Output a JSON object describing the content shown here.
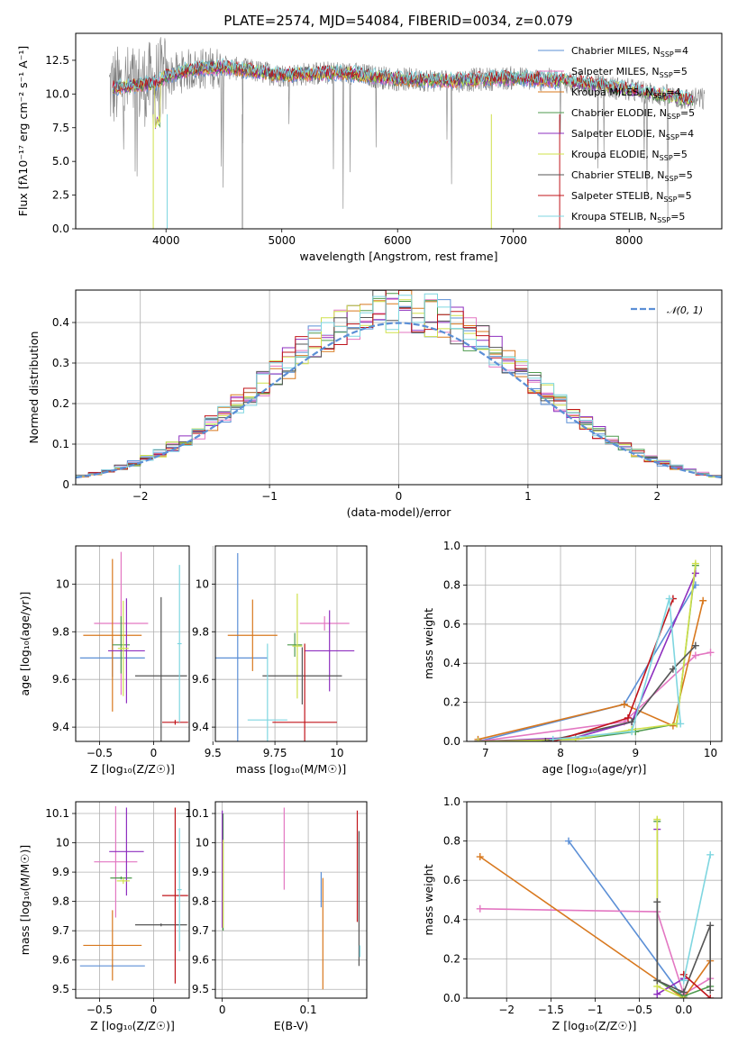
{
  "figure": {
    "title": "PLATE=2574, MJD=54084, FIBERID=0034, z=0.079"
  },
  "colors": {
    "Chabrier MILES": "#5b8fd6",
    "Salpeter MILES": "#e377c2",
    "Kroupa MILES": "#d8781e",
    "Chabrier ELODIE": "#4e9a4e",
    "Salpeter ELODIE": "#8e2fbf",
    "Kroupa ELODIE": "#cfe04a",
    "Chabrier STELIB": "#555555",
    "Salpeter STELIB": "#c0141a",
    "Kroupa STELIB": "#7fd6e0",
    "data": "#7f7f7f",
    "normal": "#5b8fd6"
  },
  "chart_data": [
    {
      "id": "spectrum",
      "type": "line",
      "title": "PLATE=2574, MJD=54084, FIBERID=0034, z=0.079",
      "xlabel": "wavelength [Angstrom, rest frame]",
      "ylabel": "Flux [fλ10⁻¹⁷ erg cm⁻² s⁻¹ A⁻¹]",
      "xlim": [
        3220,
        8800
      ],
      "ylim": [
        0,
        14.5
      ],
      "xticks": [
        4000,
        5000,
        6000,
        7000,
        8000
      ],
      "yticks": [
        0.0,
        2.5,
        5.0,
        7.5,
        10.0,
        12.5
      ],
      "grid": false,
      "legend_position": "upper right",
      "legend": [
        {
          "name": "Chabrier MILES, N",
          "sub": "SSP",
          "suffix": "=4",
          "color": "#5b8fd6"
        },
        {
          "name": "Salpeter MILES, N",
          "sub": "SSP",
          "suffix": "=5",
          "color": "#e377c2"
        },
        {
          "name": "Kroupa MILES, N",
          "sub": "SSP",
          "suffix": "=4",
          "color": "#d8781e"
        },
        {
          "name": "Chabrier ELODIE, N",
          "sub": "SSP",
          "suffix": "=5",
          "color": "#4e9a4e"
        },
        {
          "name": "Salpeter ELODIE, N",
          "sub": "SSP",
          "suffix": "=4",
          "color": "#8e2fbf"
        },
        {
          "name": "Kroupa ELODIE, N",
          "sub": "SSP",
          "suffix": "=5",
          "color": "#cfe04a"
        },
        {
          "name": "Chabrier STELIB, N",
          "sub": "SSP",
          "suffix": "=5",
          "color": "#555555"
        },
        {
          "name": "Salpeter STELIB, N",
          "sub": "SSP",
          "suffix": "=5",
          "color": "#c0141a"
        },
        {
          "name": "Kroupa STELIB, N",
          "sub": "SSP",
          "suffix": "=5",
          "color": "#7fd6e0"
        }
      ],
      "continuum": [
        [
          3500,
          10.4
        ],
        [
          3700,
          10.6
        ],
        [
          3900,
          10.8
        ],
        [
          4000,
          11.3
        ],
        [
          4200,
          11.8
        ],
        [
          4500,
          12.0
        ],
        [
          5000,
          11.4
        ],
        [
          5500,
          11.6
        ],
        [
          6000,
          11.1
        ],
        [
          6500,
          11.0
        ],
        [
          7000,
          11.2
        ],
        [
          7400,
          11.0
        ],
        [
          8000,
          10.3
        ],
        [
          8500,
          9.6
        ]
      ]
    },
    {
      "id": "residuals",
      "type": "histogram",
      "xlabel": "(data-model)/error",
      "ylabel": "Normed distribution",
      "xlim": [
        -2.5,
        2.5
      ],
      "ylim": [
        0,
        0.48
      ],
      "xticks": [
        -2,
        -1,
        0,
        1,
        2
      ],
      "yticks": [
        0.0,
        0.1,
        0.2,
        0.3,
        0.4
      ],
      "grid": true,
      "legend_position": "upper right",
      "legend": [
        {
          "name": "𝒩(0, 1)",
          "color": "#5b8fd6",
          "style": "dashed"
        }
      ],
      "bin_width": 0.1,
      "reference_curve": "standard normal density"
    },
    {
      "id": "age-vs-Z",
      "type": "errorbar",
      "xlabel": "Z [log₁₀(Z/Z☉)]",
      "ylabel": "age [log₁₀(age/yr)]",
      "xlim": [
        -0.72,
        0.33
      ],
      "ylim": [
        9.34,
        10.16
      ],
      "xticks": [
        -0.5,
        0.0
      ],
      "yticks": [
        9.4,
        9.6,
        9.8,
        10.0
      ],
      "grid": true,
      "points": [
        {
          "series": "Chabrier MILES",
          "x": -0.38,
          "xerr": 0.3,
          "y": 9.69,
          "yerr": 0.08
        },
        {
          "series": "Salpeter MILES",
          "x": -0.3,
          "xerr": 0.25,
          "y": 9.835,
          "yerr": 0.3
        },
        {
          "series": "Kroupa MILES",
          "x": -0.38,
          "xerr": 0.27,
          "y": 9.785,
          "yerr": 0.32
        },
        {
          "series": "Chabrier ELODIE",
          "x": -0.3,
          "xerr": 0.08,
          "y": 9.745,
          "yerr": 0.12
        },
        {
          "series": "Salpeter ELODIE",
          "x": -0.25,
          "xerr": 0.17,
          "y": 9.72,
          "yerr": 0.22
        },
        {
          "series": "Kroupa ELODIE",
          "x": -0.28,
          "xerr": 0.05,
          "y": 9.73,
          "yerr": 0.2
        },
        {
          "series": "Chabrier STELIB",
          "x": 0.07,
          "xerr": 0.24,
          "y": 9.615,
          "yerr": 0.33
        },
        {
          "series": "Salpeter STELIB",
          "x": 0.2,
          "xerr": 0.12,
          "y": 9.42,
          "yerr": 0.01
        },
        {
          "series": "Kroupa STELIB",
          "x": 0.24,
          "xerr": 0.02,
          "y": 9.75,
          "yerr": 0.33
        }
      ]
    },
    {
      "id": "age-vs-mass",
      "type": "errorbar",
      "xlabel": "mass [log₁₀(M/M☉)]",
      "ylabel": "",
      "xlim": [
        9.51,
        10.12
      ],
      "ylim": [
        9.34,
        10.16
      ],
      "xticks": [
        9.5,
        9.75,
        10.0
      ],
      "yticks": [
        9.4,
        9.6,
        9.8,
        10.0
      ],
      "grid": true,
      "points": [
        {
          "series": "Chabrier MILES",
          "x": 9.6,
          "xerr": 0.12,
          "y": 9.69,
          "yerr": 0.44
        },
        {
          "series": "Salpeter MILES",
          "x": 9.95,
          "xerr": 0.1,
          "y": 9.835,
          "yerr": 0.03
        },
        {
          "series": "Kroupa MILES",
          "x": 9.66,
          "xerr": 0.1,
          "y": 9.785,
          "yerr": 0.15
        },
        {
          "series": "Chabrier ELODIE",
          "x": 9.83,
          "xerr": 0.03,
          "y": 9.745,
          "yerr": 0.05
        },
        {
          "series": "Salpeter ELODIE",
          "x": 9.97,
          "xerr": 0.1,
          "y": 9.72,
          "yerr": 0.17
        },
        {
          "series": "Kroupa ELODIE",
          "x": 9.84,
          "xerr": 0.02,
          "y": 9.74,
          "yerr": 0.22
        },
        {
          "series": "Chabrier STELIB",
          "x": 9.86,
          "xerr": 0.16,
          "y": 9.615,
          "yerr": 0.12
        },
        {
          "series": "Salpeter STELIB",
          "x": 9.87,
          "xerr": 0.13,
          "y": 9.42,
          "yerr": 0.33
        },
        {
          "series": "Kroupa STELIB",
          "x": 9.72,
          "xerr": 0.08,
          "y": 9.43,
          "yerr": 0.32
        }
      ]
    },
    {
      "id": "massweight-vs-age",
      "type": "line",
      "xlabel": "age  [log₁₀(age/yr)]",
      "ylabel": "mass weight",
      "xlim": [
        6.75,
        10.15
      ],
      "ylim": [
        0,
        1
      ],
      "xticks": [
        7,
        8,
        9,
        10
      ],
      "yticks": [
        0.0,
        0.2,
        0.4,
        0.6,
        0.8,
        1.0
      ],
      "grid": true,
      "series": [
        {
          "name": "Chabrier MILES",
          "x": [
            6.9,
            8.85,
            9.8
          ],
          "y": [
            0.0,
            0.19,
            0.8
          ]
        },
        {
          "name": "Salpeter MILES",
          "x": [
            6.9,
            8.85,
            9.8,
            10.0
          ],
          "y": [
            0.0,
            0.1,
            0.44,
            0.455
          ]
        },
        {
          "name": "Kroupa MILES",
          "x": [
            6.9,
            8.85,
            9.5,
            9.9
          ],
          "y": [
            0.01,
            0.19,
            0.08,
            0.72
          ]
        },
        {
          "name": "Chabrier ELODIE",
          "x": [
            6.9,
            8.2,
            9.0,
            9.55,
            9.8
          ],
          "y": [
            0.0,
            0.01,
            0.05,
            0.09,
            0.9
          ]
        },
        {
          "name": "Salpeter ELODIE",
          "x": [
            6.9,
            8.2,
            8.95,
            9.8
          ],
          "y": [
            0.0,
            0.02,
            0.1,
            0.86
          ]
        },
        {
          "name": "Kroupa ELODIE",
          "x": [
            6.9,
            8.2,
            8.95,
            9.55,
            9.8
          ],
          "y": [
            0.0,
            0.01,
            0.06,
            0.09,
            0.91
          ]
        },
        {
          "name": "Chabrier STELIB",
          "x": [
            7.8,
            8.95,
            9.5,
            9.8
          ],
          "y": [
            0.0,
            0.1,
            0.37,
            0.49
          ]
        },
        {
          "name": "Salpeter STELIB",
          "x": [
            7.9,
            8.9,
            9.5
          ],
          "y": [
            0.0,
            0.12,
            0.73
          ]
        },
        {
          "name": "Kroupa STELIB",
          "x": [
            7.9,
            8.95,
            9.45,
            9.6
          ],
          "y": [
            0.01,
            0.05,
            0.73,
            0.09
          ]
        }
      ]
    },
    {
      "id": "mass-vs-Z",
      "type": "errorbar",
      "xlabel": "Z [log₁₀(Z/Z☉)]",
      "ylabel": "mass [log₁₀(M/M☉)]",
      "xlim": [
        -0.72,
        0.33
      ],
      "ylim": [
        9.47,
        10.14
      ],
      "xticks": [
        -0.5,
        0.0
      ],
      "yticks": [
        9.5,
        9.6,
        9.7,
        9.8,
        9.9,
        10.0,
        10.1
      ],
      "grid": true,
      "points": [
        {
          "series": "Chabrier MILES",
          "x": -0.38,
          "xerr": 0.3,
          "y": 9.58,
          "yerr": 0.005
        },
        {
          "series": "Salpeter MILES",
          "x": -0.35,
          "xerr": 0.2,
          "y": 9.935,
          "yerr": 0.19
        },
        {
          "series": "Kroupa MILES",
          "x": -0.38,
          "xerr": 0.27,
          "y": 9.65,
          "yerr": 0.12
        },
        {
          "series": "Chabrier ELODIE",
          "x": -0.3,
          "xerr": 0.1,
          "y": 9.88,
          "yerr": 0.005
        },
        {
          "series": "Salpeter ELODIE",
          "x": -0.25,
          "xerr": 0.16,
          "y": 9.97,
          "yerr": 0.15
        },
        {
          "series": "Kroupa ELODIE",
          "x": -0.28,
          "xerr": 0.06,
          "y": 9.87,
          "yerr": 0.01
        },
        {
          "series": "Chabrier STELIB",
          "x": 0.07,
          "xerr": 0.24,
          "y": 9.72,
          "yerr": 0.005
        },
        {
          "series": "Salpeter STELIB",
          "x": 0.2,
          "xerr": 0.12,
          "y": 9.82,
          "yerr": 0.3
        },
        {
          "series": "Kroupa STELIB",
          "x": 0.24,
          "xerr": 0.02,
          "y": 9.84,
          "yerr": 0.21
        }
      ]
    },
    {
      "id": "mass-vs-ebv",
      "type": "errorbar",
      "xlabel": "E(B-V)",
      "ylabel": "",
      "xlim": [
        -0.008,
        0.168
      ],
      "ylim": [
        9.47,
        10.14
      ],
      "xticks": [
        0.0,
        0.1
      ],
      "yticks": [
        9.5,
        9.6,
        9.7,
        9.8,
        9.9,
        10.0,
        10.1
      ],
      "grid": true,
      "points": [
        {
          "series": "Chabrier MILES",
          "x": 0.115,
          "y": 9.84,
          "yerr": 0.06
        },
        {
          "series": "Salpeter MILES",
          "x": 0.072,
          "y": 9.98,
          "yerr": 0.14
        },
        {
          "series": "Kroupa MILES",
          "x": 0.117,
          "y": 9.69,
          "yerr": 0.19
        },
        {
          "series": "Chabrier ELODIE",
          "x": 0.001,
          "y": 9.9,
          "yerr": 0.2
        },
        {
          "series": "Salpeter ELODIE",
          "x": 0.0,
          "y": 9.91,
          "yerr": 0.2
        },
        {
          "series": "Kroupa ELODIE",
          "x": 0.001,
          "y": 9.86,
          "yerr": 0.15
        },
        {
          "series": "Chabrier STELIB",
          "x": 0.159,
          "y": 9.81,
          "yerr": 0.23
        },
        {
          "series": "Salpeter STELIB",
          "x": 0.157,
          "y": 9.92,
          "yerr": 0.19
        },
        {
          "series": "Kroupa STELIB",
          "x": 0.16,
          "y": 9.63,
          "yerr": 0.02
        }
      ]
    },
    {
      "id": "massweight-vs-Z",
      "type": "line",
      "xlabel": "Z [log₁₀(Z/Z☉)]",
      "ylabel": "mass weight",
      "xlim": [
        -2.45,
        0.43
      ],
      "ylim": [
        0,
        1
      ],
      "xticks": [
        -2.0,
        -1.5,
        -1.0,
        -0.5,
        0.0
      ],
      "yticks": [
        0.0,
        0.2,
        0.4,
        0.6,
        0.8,
        1.0
      ],
      "grid": true,
      "series": [
        {
          "name": "Chabrier MILES",
          "x": [
            -1.3,
            0.0
          ],
          "y": [
            0.8,
            0.0
          ]
        },
        {
          "name": "Salpeter MILES",
          "x": [
            -2.3,
            -0.3,
            0.0,
            0.3
          ],
          "y": [
            0.455,
            0.44,
            0.02,
            0.1
          ]
        },
        {
          "name": "Kroupa MILES",
          "x": [
            -2.3,
            0.0,
            0.3
          ],
          "y": [
            0.72,
            0.0,
            0.19
          ]
        },
        {
          "name": "Chabrier ELODIE",
          "x": [
            -0.3,
            -0.3,
            0.0,
            0.3
          ],
          "y": [
            0.9,
            0.09,
            0.01,
            0.06
          ]
        },
        {
          "name": "Salpeter ELODIE",
          "x": [
            -0.3,
            -0.3,
            0.0
          ],
          "y": [
            0.86,
            0.02,
            0.1
          ]
        },
        {
          "name": "Kroupa ELODIE",
          "x": [
            -0.3,
            -0.3,
            0.0
          ],
          "y": [
            0.91,
            0.06,
            0.0
          ]
        },
        {
          "name": "Chabrier STELIB",
          "x": [
            -0.3,
            -0.3,
            0.0,
            0.3,
            0.3
          ],
          "y": [
            0.49,
            0.09,
            0.03,
            0.37,
            0.04
          ]
        },
        {
          "name": "Salpeter STELIB",
          "x": [
            0.0,
            0.3
          ],
          "y": [
            0.12,
            0.0
          ]
        },
        {
          "name": "Kroupa STELIB",
          "x": [
            0.0,
            0.3
          ],
          "y": [
            0.09,
            0.73
          ]
        }
      ]
    }
  ]
}
